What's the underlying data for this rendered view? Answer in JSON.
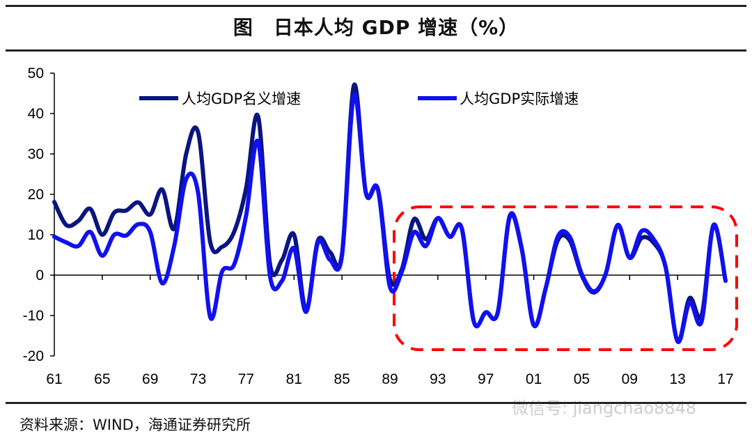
{
  "title": "图　日本人均 GDP 增速（%）",
  "source": "资料来源：WIND，海通证券研究所",
  "watermark": "微信号: jiangchao8848",
  "chart_data": {
    "type": "line",
    "title": "图　日本人均 GDP 增速（%）",
    "xlabel": "",
    "ylabel": "",
    "ylim": [
      -20,
      50
    ],
    "yticks": [
      "50",
      "40",
      "30",
      "20",
      "10",
      "0",
      "-10",
      "-20"
    ],
    "xlim": [
      1961,
      2017
    ],
    "xticks": [
      "61",
      "65",
      "69",
      "73",
      "77",
      "81",
      "85",
      "89",
      "93",
      "97",
      "01",
      "05",
      "09",
      "13",
      "17"
    ],
    "grid": false,
    "legend": "top",
    "x": [
      1961,
      1962,
      1963,
      1964,
      1965,
      1966,
      1967,
      1968,
      1969,
      1970,
      1971,
      1972,
      1973,
      1974,
      1975,
      1976,
      1977,
      1978,
      1979,
      1980,
      1981,
      1982,
      1983,
      1984,
      1985,
      1986,
      1987,
      1988,
      1989,
      1990,
      1991,
      1992,
      1993,
      1994,
      1995,
      1996,
      1997,
      1998,
      1999,
      2000,
      2001,
      2002,
      2003,
      2004,
      2005,
      2006,
      2007,
      2008,
      2009,
      2010,
      2011,
      2012,
      2013,
      2014,
      2015,
      2016,
      2017
    ],
    "series": [
      {
        "name": "人均GDP名义增速",
        "color": "#0a1580",
        "values": [
          18.1,
          12.4,
          13.4,
          16.4,
          10,
          15.5,
          16,
          18,
          15,
          21.2,
          11.5,
          30,
          35.3,
          8.3,
          7,
          10.7,
          21.5,
          39.3,
          2.6,
          3.8,
          10,
          -8.6,
          8.6,
          5.7,
          5.2,
          47,
          20.3,
          21.2,
          -1,
          1.5,
          13.8,
          8.9,
          14.1,
          9.5,
          11.5,
          -11.5,
          -9.2,
          -9.2,
          14.4,
          6.4,
          -12.4,
          -3.2,
          8.6,
          8.6,
          0,
          -4.3,
          0.3,
          12.4,
          4.3,
          9.2,
          8,
          2,
          -16.4,
          -5.7,
          -10,
          12.4,
          -1.4
        ]
      },
      {
        "name": "人均GDP实际增速",
        "color": "#1010f0",
        "values": [
          9.5,
          8.1,
          7.2,
          10.7,
          4.8,
          10,
          9.8,
          12.6,
          10.7,
          -2,
          7.2,
          23.8,
          20.3,
          -10.3,
          0.9,
          2.6,
          14.7,
          33,
          -0.3,
          -1.4,
          6.6,
          -9.1,
          8.1,
          3.8,
          4.8,
          44.5,
          20.3,
          21.2,
          -2.9,
          0.9,
          10.6,
          7.2,
          14.1,
          9.5,
          11.5,
          -11.5,
          -9.2,
          -9.2,
          14.7,
          6.6,
          -12.4,
          -3.2,
          9.5,
          9.5,
          0.3,
          -4,
          0.3,
          12.4,
          4.3,
          10.9,
          8.9,
          2,
          -16.4,
          -6.8,
          -11.5,
          12.4,
          -1.4
        ]
      }
    ],
    "annotations": [
      {
        "type": "dashed-rounded-box",
        "color": "#ff0000",
        "from_x": 1989,
        "to_x": 2017
      }
    ]
  }
}
